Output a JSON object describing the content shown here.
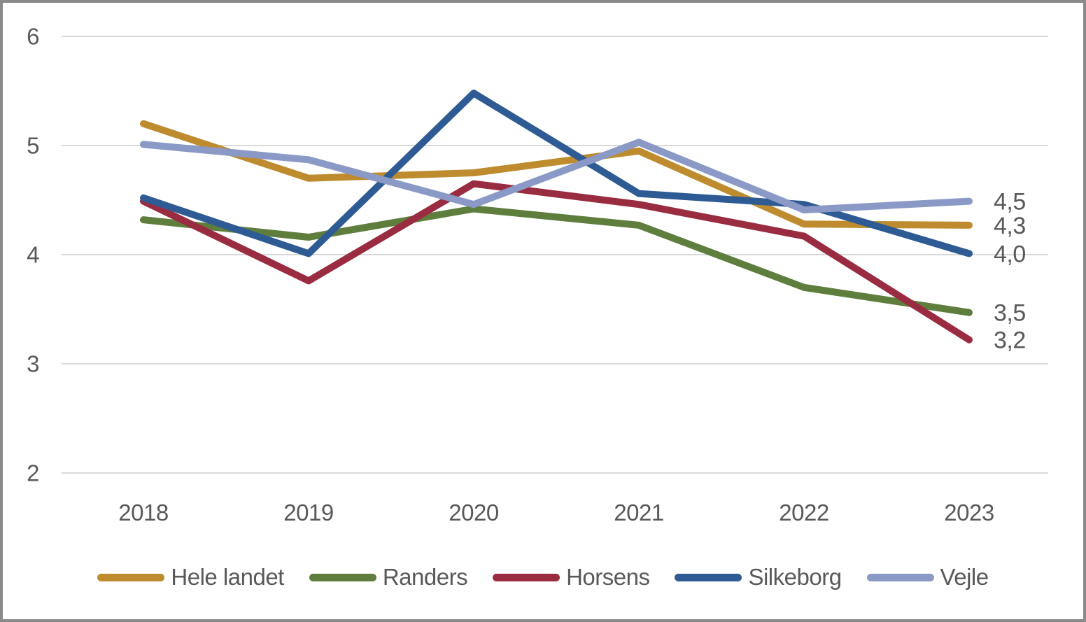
{
  "frame": {
    "background": "#FFFFFF",
    "border_color": "#8A8A8A"
  },
  "chart_data": {
    "type": "line",
    "title": "",
    "xlabel": "",
    "ylabel": "",
    "categories": [
      "2018",
      "2019",
      "2020",
      "2021",
      "2022",
      "2023"
    ],
    "yticks": [
      "6",
      "5",
      "4",
      "3",
      "2"
    ],
    "ylim": [
      2,
      6
    ],
    "grid": true,
    "gridline_color": "#D9D9D9",
    "axis_text_color": "#595959",
    "legend_position": "bottom",
    "series": [
      {
        "name": "Hele landet",
        "color": "#BE8C2E",
        "values": [
          5.2,
          4.7,
          4.75,
          4.95,
          4.28,
          4.27
        ],
        "end_label": "4,3"
      },
      {
        "name": "Randers",
        "color": "#5F7E3E",
        "values": [
          4.32,
          4.16,
          4.42,
          4.27,
          3.7,
          3.47
        ],
        "end_label": "3,5"
      },
      {
        "name": "Horsens",
        "color": "#9A2C41",
        "values": [
          4.49,
          3.76,
          4.65,
          4.46,
          4.17,
          3.22
        ],
        "end_label": "3,2"
      },
      {
        "name": "Silkeborg",
        "color": "#2E5B94",
        "values": [
          4.52,
          4.01,
          5.48,
          4.56,
          4.46,
          4.01
        ],
        "end_label": "4,0"
      },
      {
        "name": "Vejle",
        "color": "#8A99C6",
        "values": [
          5.01,
          4.87,
          4.46,
          5.03,
          4.41,
          4.49
        ],
        "end_label": "4,5"
      }
    ]
  }
}
